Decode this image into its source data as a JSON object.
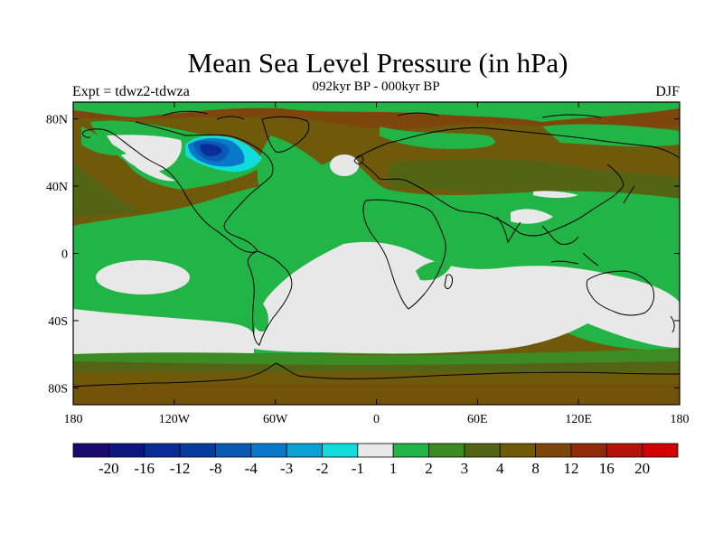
{
  "title": "Mean Sea Level Pressure (in hPa)",
  "subtitle": "092kyr BP - 000kyr BP",
  "left_label": "Expt = tdwz2-tdwza",
  "right_label": "DJF",
  "axes": {
    "x_ticks": [
      {
        "lon": -180,
        "label": "180"
      },
      {
        "lon": -120,
        "label": "120W"
      },
      {
        "lon": -60,
        "label": "60W"
      },
      {
        "lon": 0,
        "label": "0"
      },
      {
        "lon": 60,
        "label": "60E"
      },
      {
        "lon": 120,
        "label": "120E"
      },
      {
        "lon": 180,
        "label": "180"
      }
    ],
    "y_ticks": [
      {
        "lat": 80,
        "label": "80N"
      },
      {
        "lat": 40,
        "label": "40N"
      },
      {
        "lat": 0,
        "label": "0"
      },
      {
        "lat": -40,
        "label": "40S"
      },
      {
        "lat": -80,
        "label": "80S"
      }
    ],
    "lon_range": [
      -180,
      180
    ],
    "lat_range": [
      -90,
      90
    ]
  },
  "colorbar": {
    "colors": [
      "#1a0a6e",
      "#0c1680",
      "#0a2c96",
      "#063ca0",
      "#0a5ab4",
      "#0a78c8",
      "#0aa0d2",
      "#10dcdc",
      "#e8e8e8",
      "#22b446",
      "#3c8c23",
      "#556414",
      "#6e5a0a",
      "#7d460a",
      "#912a0a",
      "#b4140a",
      "#d20000"
    ],
    "labels": [
      "-20",
      "-16",
      "-12",
      "-8",
      "-4",
      "-3",
      "-2",
      "-1",
      "1",
      "2",
      "3",
      "4",
      "8",
      "12",
      "16",
      "20"
    ]
  },
  "fill_colors": {
    "brown": "#6e5a0a",
    "dark_brown": "#7d460a",
    "olive": "#556414",
    "dark_green": "#3c8c23",
    "green": "#22b446",
    "white": "#e8e8e8",
    "cyan": "#10dcdc",
    "blue": "#0a5ab4",
    "dark_blue": "#0a2c96"
  }
}
